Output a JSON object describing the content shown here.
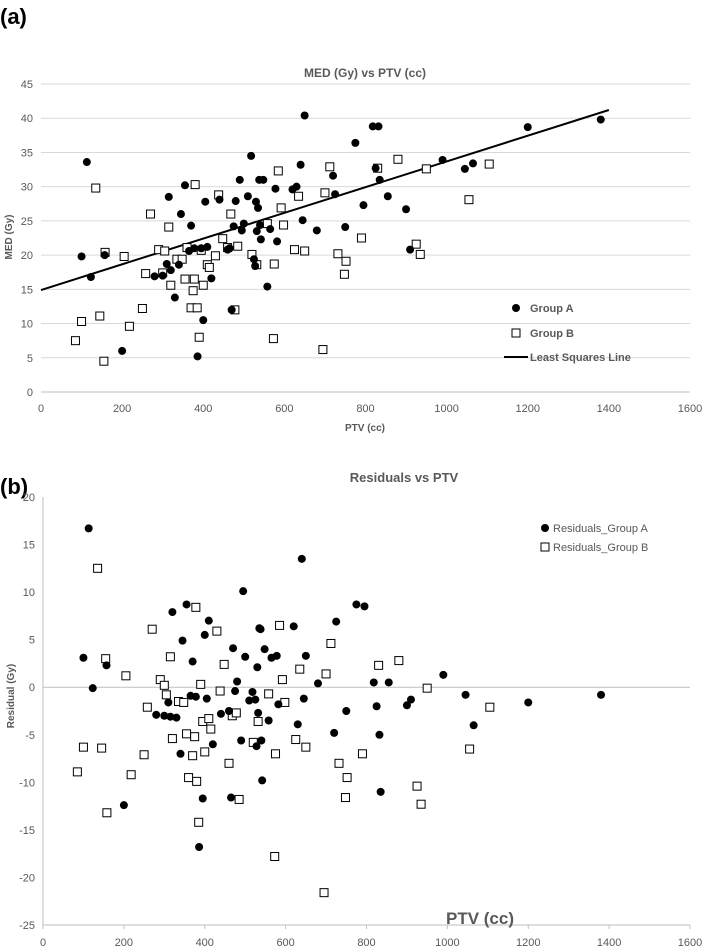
{
  "chart_data": [
    {
      "panel_label": "(a)",
      "type": "scatter",
      "title": "MED (Gy) vs PTV (cc)",
      "xlabel": "PTV (cc)",
      "ylabel": "MED (Gy)",
      "xlim": [
        0,
        1600
      ],
      "ylim": [
        0,
        45
      ],
      "xticks": [
        0,
        200,
        400,
        600,
        800,
        1000,
        1200,
        1400,
        1600
      ],
      "yticks": [
        0,
        5,
        10,
        15,
        20,
        25,
        30,
        35,
        40,
        45
      ],
      "grid": true,
      "legend": "right",
      "series": [
        {
          "name": "Group A",
          "marker": "filled-circle",
          "points": [
            [
              100,
              19.8
            ],
            [
              113,
              33.6
            ],
            [
              123,
              16.8
            ],
            [
              157,
              20.0
            ],
            [
              200,
              6.0
            ],
            [
              280,
              16.9
            ],
            [
              300,
              17.0
            ],
            [
              310,
              18.7
            ],
            [
              315,
              28.5
            ],
            [
              320,
              17.8
            ],
            [
              330,
              13.8
            ],
            [
              340,
              18.6
            ],
            [
              345,
              26.0
            ],
            [
              355,
              30.2
            ],
            [
              365,
              20.6
            ],
            [
              370,
              24.3
            ],
            [
              378,
              21.0
            ],
            [
              386,
              5.2
            ],
            [
              395,
              21.0
            ],
            [
              400,
              10.5
            ],
            [
              405,
              27.8
            ],
            [
              410,
              21.2
            ],
            [
              420,
              16.6
            ],
            [
              440,
              28.1
            ],
            [
              460,
              20.8
            ],
            [
              465,
              21.0
            ],
            [
              470,
              12.0
            ],
            [
              475,
              24.2
            ],
            [
              480,
              27.9
            ],
            [
              490,
              31.0
            ],
            [
              495,
              23.6
            ],
            [
              500,
              24.6
            ],
            [
              510,
              28.6
            ],
            [
              518,
              34.5
            ],
            [
              525,
              19.4
            ],
            [
              528,
              18.4
            ],
            [
              530,
              27.8
            ],
            [
              532,
              23.5
            ],
            [
              535,
              26.9
            ],
            [
              538,
              31.0
            ],
            [
              540,
              24.4
            ],
            [
              542,
              22.3
            ],
            [
              548,
              31.0
            ],
            [
              558,
              15.4
            ],
            [
              565,
              23.8
            ],
            [
              578,
              29.7
            ],
            [
              582,
              22.0
            ],
            [
              620,
              29.6
            ],
            [
              630,
              30.0
            ],
            [
              640,
              33.2
            ],
            [
              645,
              25.1
            ],
            [
              650,
              40.4
            ],
            [
              680,
              23.6
            ],
            [
              720,
              31.6
            ],
            [
              725,
              28.9
            ],
            [
              750,
              24.1
            ],
            [
              775,
              36.4
            ],
            [
              795,
              27.3
            ],
            [
              818,
              38.8
            ],
            [
              825,
              32.7
            ],
            [
              832,
              38.8
            ],
            [
              835,
              31.0
            ],
            [
              855,
              28.6
            ],
            [
              900,
              26.7
            ],
            [
              910,
              20.8
            ],
            [
              990,
              33.9
            ],
            [
              1045,
              32.6
            ],
            [
              1065,
              33.4
            ],
            [
              1200,
              38.7
            ],
            [
              1380,
              39.8
            ]
          ]
        },
        {
          "name": "Group B",
          "marker": "open-square",
          "points": [
            [
              85,
              7.5
            ],
            [
              100,
              10.3
            ],
            [
              135,
              29.8
            ],
            [
              145,
              11.1
            ],
            [
              155,
              4.5
            ],
            [
              158,
              20.4
            ],
            [
              205,
              19.8
            ],
            [
              218,
              9.6
            ],
            [
              250,
              12.2
            ],
            [
              258,
              17.3
            ],
            [
              270,
              26.0
            ],
            [
              290,
              20.8
            ],
            [
              300,
              17.4
            ],
            [
              305,
              20.6
            ],
            [
              315,
              24.1
            ],
            [
              320,
              15.6
            ],
            [
              335,
              19.4
            ],
            [
              348,
              19.4
            ],
            [
              355,
              16.5
            ],
            [
              360,
              21.1
            ],
            [
              370,
              12.3
            ],
            [
              375,
              14.8
            ],
            [
              378,
              16.5
            ],
            [
              380,
              30.3
            ],
            [
              385,
              12.3
            ],
            [
              390,
              8.0
            ],
            [
              395,
              20.7
            ],
            [
              400,
              15.6
            ],
            [
              410,
              18.6
            ],
            [
              415,
              18.2
            ],
            [
              430,
              19.9
            ],
            [
              438,
              28.8
            ],
            [
              448,
              22.4
            ],
            [
              460,
              21.1
            ],
            [
              468,
              26.0
            ],
            [
              478,
              12.0
            ],
            [
              485,
              21.3
            ],
            [
              520,
              20.1
            ],
            [
              532,
              18.6
            ],
            [
              558,
              24.6
            ],
            [
              573,
              7.8
            ],
            [
              575,
              18.7
            ],
            [
              585,
              32.3
            ],
            [
              592,
              26.9
            ],
            [
              598,
              24.4
            ],
            [
              625,
              20.8
            ],
            [
              635,
              28.6
            ],
            [
              650,
              20.6
            ],
            [
              700,
              29.1
            ],
            [
              712,
              32.9
            ],
            [
              732,
              20.2
            ],
            [
              748,
              17.2
            ],
            [
              752,
              19.1
            ],
            [
              790,
              22.5
            ],
            [
              830,
              32.7
            ],
            [
              880,
              34.0
            ],
            [
              925,
              21.6
            ],
            [
              935,
              20.1
            ],
            [
              950,
              32.6
            ],
            [
              1055,
              28.1
            ],
            [
              1105,
              33.3
            ],
            [
              695,
              6.2
            ]
          ]
        },
        {
          "name": "Least Squares Line",
          "marker": "line",
          "points": [
            [
              0,
              14.9
            ],
            [
              1400,
              41.2
            ]
          ]
        }
      ]
    },
    {
      "panel_label": "(b)",
      "type": "scatter",
      "title": "Residuals vs PTV",
      "xlabel": "PTV (cc)",
      "ylabel": "Residual (Gy)",
      "xlim": [
        0,
        1600
      ],
      "ylim": [
        -25,
        20
      ],
      "xticks": [
        0,
        200,
        400,
        600,
        800,
        1000,
        1200,
        1400,
        1600
      ],
      "yticks": [
        -25,
        -20,
        -15,
        -10,
        -5,
        0,
        5,
        10,
        15,
        20
      ],
      "grid": false,
      "legend": "top-right",
      "series": [
        {
          "name": "Residuals_Group A",
          "marker": "filled-circle",
          "points": [
            [
              100,
              3.1
            ],
            [
              113,
              16.7
            ],
            [
              123,
              -0.1
            ],
            [
              157,
              2.3
            ],
            [
              200,
              -12.4
            ],
            [
              280,
              -2.9
            ],
            [
              300,
              -3.0
            ],
            [
              310,
              -1.6
            ],
            [
              315,
              -3.1
            ],
            [
              320,
              7.9
            ],
            [
              330,
              -3.2
            ],
            [
              340,
              -7.0
            ],
            [
              345,
              4.9
            ],
            [
              355,
              8.7
            ],
            [
              365,
              -0.9
            ],
            [
              370,
              2.7
            ],
            [
              378,
              -1.0
            ],
            [
              386,
              -16.8
            ],
            [
              395,
              -11.7
            ],
            [
              400,
              5.5
            ],
            [
              405,
              -1.2
            ],
            [
              410,
              7.0
            ],
            [
              420,
              -6.0
            ],
            [
              440,
              -2.8
            ],
            [
              460,
              -2.5
            ],
            [
              465,
              -11.6
            ],
            [
              470,
              4.1
            ],
            [
              475,
              -0.4
            ],
            [
              480,
              0.6
            ],
            [
              490,
              -5.6
            ],
            [
              495,
              10.1
            ],
            [
              500,
              3.2
            ],
            [
              510,
              -1.4
            ],
            [
              518,
              -0.5
            ],
            [
              525,
              -1.3
            ],
            [
              528,
              -6.2
            ],
            [
              530,
              2.1
            ],
            [
              532,
              -2.7
            ],
            [
              535,
              6.2
            ],
            [
              538,
              6.1
            ],
            [
              540,
              -5.6
            ],
            [
              542,
              -9.8
            ],
            [
              548,
              4.0
            ],
            [
              558,
              -3.5
            ],
            [
              565,
              3.1
            ],
            [
              578,
              3.3
            ],
            [
              582,
              -1.8
            ],
            [
              620,
              6.4
            ],
            [
              630,
              -3.9
            ],
            [
              640,
              13.5
            ],
            [
              645,
              -1.2
            ],
            [
              650,
              3.3
            ],
            [
              680,
              0.4
            ],
            [
              720,
              -4.8
            ],
            [
              725,
              6.9
            ],
            [
              750,
              -2.5
            ],
            [
              775,
              8.7
            ],
            [
              795,
              8.5
            ],
            [
              818,
              0.5
            ],
            [
              825,
              -2.0
            ],
            [
              832,
              -5.0
            ],
            [
              835,
              -11.0
            ],
            [
              855,
              0.5
            ],
            [
              900,
              -1.9
            ],
            [
              910,
              -1.3
            ],
            [
              990,
              1.3
            ],
            [
              1045,
              -0.8
            ],
            [
              1065,
              -4.0
            ],
            [
              1200,
              -1.6
            ],
            [
              1380,
              -0.8
            ]
          ]
        },
        {
          "name": "Residuals_Group B",
          "marker": "open-square",
          "points": [
            [
              85,
              -8.9
            ],
            [
              100,
              -6.3
            ],
            [
              135,
              12.5
            ],
            [
              145,
              -6.4
            ],
            [
              155,
              3.0
            ],
            [
              158,
              -13.2
            ],
            [
              205,
              1.2
            ],
            [
              218,
              -9.2
            ],
            [
              250,
              -7.1
            ],
            [
              258,
              -2.1
            ],
            [
              270,
              6.1
            ],
            [
              290,
              0.8
            ],
            [
              300,
              0.2
            ],
            [
              305,
              -0.8
            ],
            [
              315,
              3.2
            ],
            [
              320,
              -5.4
            ],
            [
              335,
              -1.5
            ],
            [
              348,
              -1.6
            ],
            [
              355,
              -4.9
            ],
            [
              360,
              -9.5
            ],
            [
              370,
              -7.2
            ],
            [
              375,
              -5.2
            ],
            [
              378,
              8.4
            ],
            [
              380,
              -9.9
            ],
            [
              385,
              -14.2
            ],
            [
              390,
              0.3
            ],
            [
              395,
              -3.6
            ],
            [
              400,
              -6.8
            ],
            [
              410,
              -3.3
            ],
            [
              415,
              -4.4
            ],
            [
              430,
              5.9
            ],
            [
              438,
              -0.4
            ],
            [
              448,
              2.4
            ],
            [
              460,
              -8.0
            ],
            [
              468,
              -3.0
            ],
            [
              478,
              -2.7
            ],
            [
              485,
              -11.8
            ],
            [
              520,
              -5.8
            ],
            [
              532,
              -3.6
            ],
            [
              558,
              -0.7
            ],
            [
              573,
              -17.8
            ],
            [
              575,
              -7.0
            ],
            [
              585,
              6.5
            ],
            [
              592,
              0.8
            ],
            [
              598,
              -1.6
            ],
            [
              625,
              -5.5
            ],
            [
              635,
              1.9
            ],
            [
              650,
              -6.3
            ],
            [
              695,
              -21.6
            ],
            [
              700,
              1.4
            ],
            [
              712,
              4.6
            ],
            [
              732,
              -8.0
            ],
            [
              748,
              -11.6
            ],
            [
              752,
              -9.5
            ],
            [
              790,
              -7.0
            ],
            [
              830,
              2.3
            ],
            [
              880,
              2.8
            ],
            [
              925,
              -10.4
            ],
            [
              935,
              -12.3
            ],
            [
              950,
              -0.1
            ],
            [
              1055,
              -6.5
            ],
            [
              1105,
              -2.1
            ]
          ]
        }
      ]
    }
  ]
}
